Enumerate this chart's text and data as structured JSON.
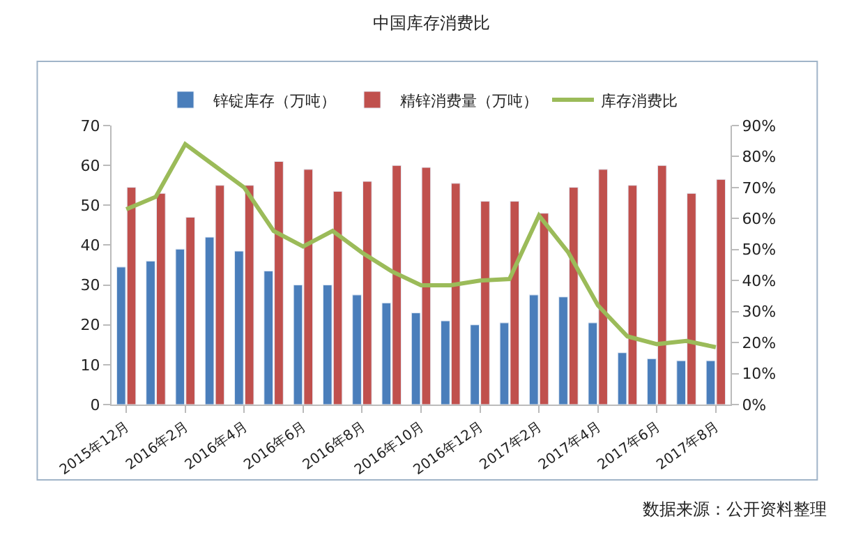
{
  "chart_data": {
    "type": "bar",
    "title": "中国库存消费比",
    "categories": [
      "2015年12月",
      null,
      "2016年2月",
      null,
      "2016年4月",
      null,
      "2016年6月",
      null,
      "2016年8月",
      null,
      "2016年10月",
      null,
      "2016年12月",
      null,
      "2017年2月",
      null,
      "2017年4月",
      null,
      "2017年6月",
      null,
      "2017年8月"
    ],
    "series": [
      {
        "name": "锌锭库存（万吨）",
        "color": "#4a7ebb",
        "values": [
          34.5,
          36,
          39,
          42,
          38.5,
          33.5,
          30,
          30,
          27.5,
          25.5,
          23,
          21,
          20,
          20.5,
          27.5,
          27,
          20.5,
          13,
          11.5,
          11,
          11
        ]
      },
      {
        "name": "精锌消费量（万吨）",
        "color": "#c0504d",
        "values": [
          54.5,
          53,
          47,
          55,
          55,
          61,
          59,
          53.5,
          56,
          60,
          59.5,
          55.5,
          51,
          51,
          48,
          54.5,
          59,
          55,
          60,
          53,
          56.5
        ]
      },
      {
        "name": "库存消费比",
        "type": "line",
        "axis": "y2",
        "color": "#9bbb59",
        "values": [
          63,
          67,
          84,
          77,
          70,
          56,
          51,
          56,
          49,
          43,
          38.5,
          38.5,
          40,
          40.5,
          61,
          49,
          32,
          22,
          19.5,
          20.5,
          18.5
        ]
      }
    ],
    "ylim": [
      0,
      70
    ],
    "yticks": [
      0,
      10,
      20,
      30,
      40,
      50,
      60,
      70
    ],
    "y2lim": [
      0,
      90
    ],
    "y2ticks": [
      {
        "value": 0,
        "label": "0%"
      },
      {
        "value": 10,
        "label": "10%"
      },
      {
        "value": 20,
        "label": "20%"
      },
      {
        "value": 30,
        "label": "30%"
      },
      {
        "value": 40,
        "label": "40%"
      },
      {
        "value": 50,
        "label": "50%"
      },
      {
        "value": 60,
        "label": "60%"
      },
      {
        "value": 70,
        "label": "70%"
      },
      {
        "value": 80,
        "label": "80%"
      },
      {
        "value": 90,
        "label": "90%"
      }
    ],
    "legend": "top",
    "grid": false,
    "annotations": [
      "数据来源：公开资料整理"
    ]
  }
}
